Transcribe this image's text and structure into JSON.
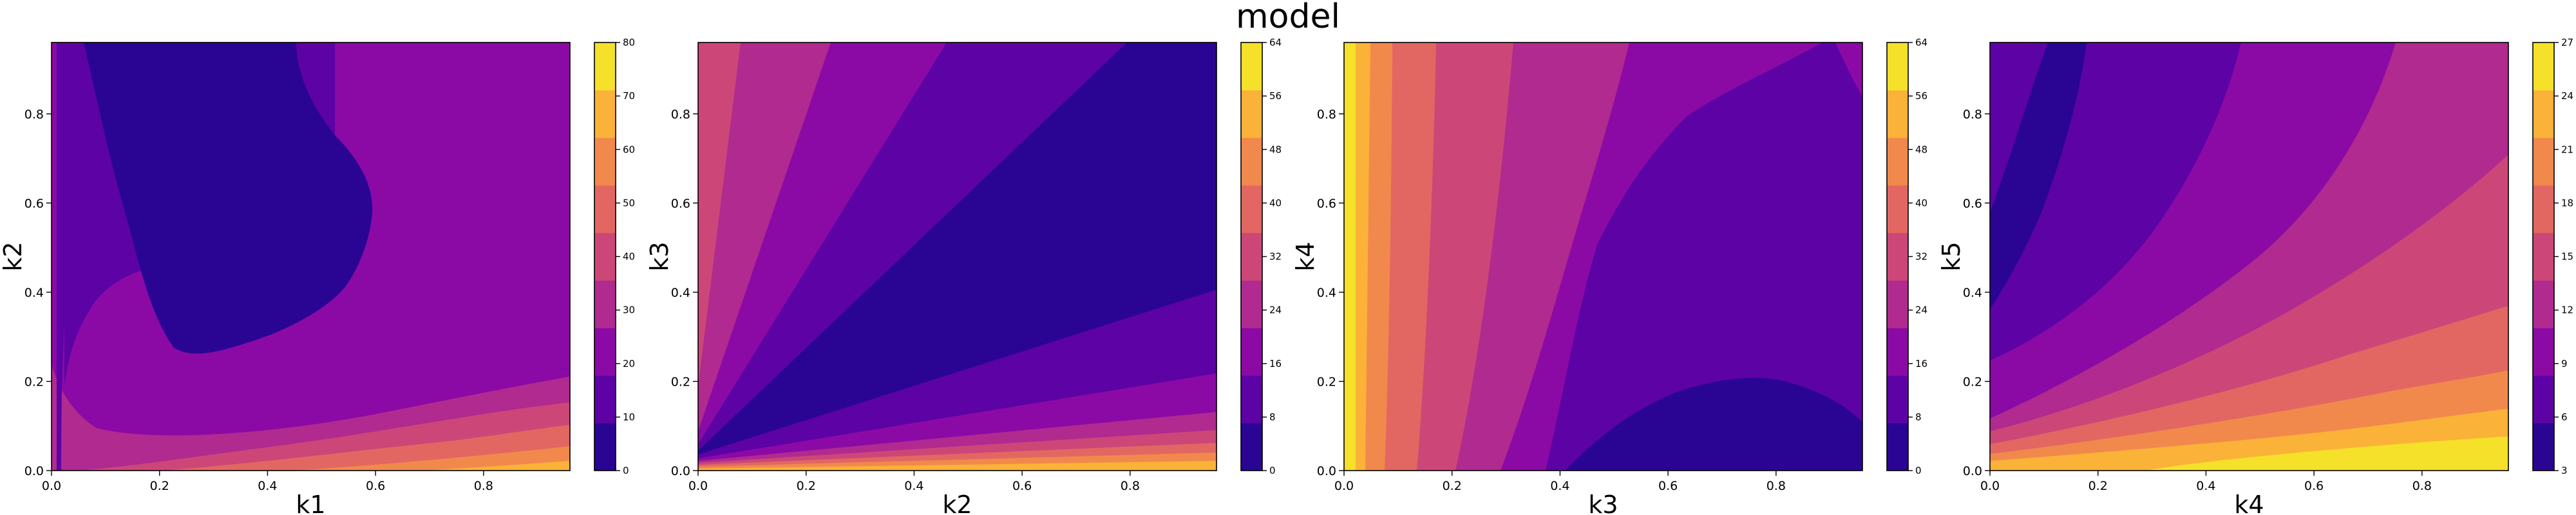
{
  "figure": {
    "title": "model"
  },
  "chart_data": [
    {
      "type": "contour",
      "xlabel": "k1",
      "ylabel": "k2",
      "xlim": [
        0,
        0.96
      ],
      "ylim": [
        0,
        0.96
      ],
      "xticks": [
        "0.0",
        "0.2",
        "0.4",
        "0.6",
        "0.8"
      ],
      "yticks": [
        "0.0",
        "0.2",
        "0.4",
        "0.6",
        "0.8"
      ],
      "colorbar": {
        "levels": [
          0,
          10,
          20,
          30,
          40,
          50,
          60,
          70,
          80
        ],
        "tick_labels": [
          "0",
          "10",
          "20",
          "30",
          "40",
          "50",
          "60",
          "70",
          "80"
        ]
      },
      "colormap": [
        "#2a0594",
        "#5d02a5",
        "#8b0aa5",
        "#b02a90",
        "#cc4778",
        "#e26762",
        "#f1894d",
        "#fbb238",
        "#f5e02a"
      ],
      "grid": false
    },
    {
      "type": "contour",
      "xlabel": "k2",
      "ylabel": "k3",
      "xlim": [
        0,
        0.96
      ],
      "ylim": [
        0,
        0.96
      ],
      "xticks": [
        "0.0",
        "0.2",
        "0.4",
        "0.6",
        "0.8"
      ],
      "yticks": [
        "0.0",
        "0.2",
        "0.4",
        "0.6",
        "0.8"
      ],
      "colorbar": {
        "levels": [
          0,
          8,
          16,
          24,
          32,
          40,
          48,
          56,
          64
        ],
        "tick_labels": [
          "0",
          "8",
          "16",
          "24",
          "32",
          "40",
          "48",
          "56",
          "64"
        ]
      },
      "colormap": [
        "#2a0594",
        "#5d02a5",
        "#8b0aa5",
        "#b02a90",
        "#cc4778",
        "#e26762",
        "#f1894d",
        "#fbb238",
        "#f5e02a"
      ],
      "grid": false
    },
    {
      "type": "contour",
      "xlabel": "k3",
      "ylabel": "k4",
      "xlim": [
        0,
        0.96
      ],
      "ylim": [
        0,
        0.96
      ],
      "xticks": [
        "0.0",
        "0.2",
        "0.4",
        "0.6",
        "0.8"
      ],
      "yticks": [
        "0.0",
        "0.2",
        "0.4",
        "0.6",
        "0.8"
      ],
      "colorbar": {
        "levels": [
          0,
          8,
          16,
          24,
          32,
          40,
          48,
          56,
          64
        ],
        "tick_labels": [
          "0",
          "8",
          "16",
          "24",
          "32",
          "40",
          "48",
          "56",
          "64"
        ]
      },
      "colormap": [
        "#2a0594",
        "#5d02a5",
        "#8b0aa5",
        "#b02a90",
        "#cc4778",
        "#e26762",
        "#f1894d",
        "#fbb238",
        "#f5e02a"
      ],
      "grid": false
    },
    {
      "type": "contour",
      "xlabel": "k4",
      "ylabel": "k5",
      "xlim": [
        0,
        0.96
      ],
      "ylim": [
        0,
        0.96
      ],
      "xticks": [
        "0.0",
        "0.2",
        "0.4",
        "0.6",
        "0.8"
      ],
      "yticks": [
        "0.0",
        "0.2",
        "0.4",
        "0.6",
        "0.8"
      ],
      "colorbar": {
        "levels": [
          3,
          6,
          9,
          12,
          15,
          18,
          21,
          24,
          27
        ],
        "tick_labels": [
          "3",
          "6",
          "9",
          "12",
          "15",
          "18",
          "21",
          "24",
          "27"
        ]
      },
      "colormap": [
        "#2a0594",
        "#5d02a5",
        "#8b0aa5",
        "#b02a90",
        "#cc4778",
        "#e26762",
        "#f1894d",
        "#fbb238",
        "#f5e02a"
      ],
      "grid": false
    }
  ]
}
